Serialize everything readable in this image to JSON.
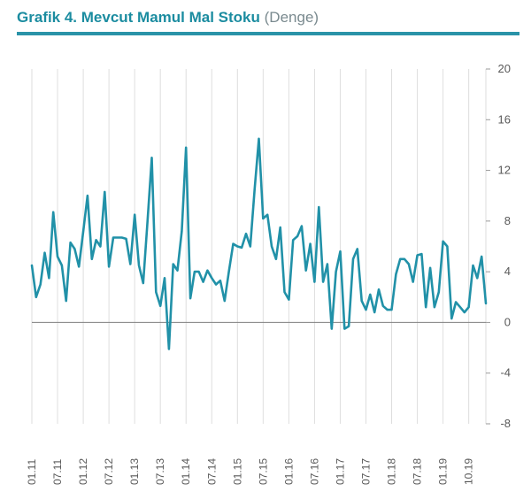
{
  "header": {
    "title_bold": "Grafik 4. Mevcut Mamul Mal Stoku",
    "title_light": "(Denge)"
  },
  "colors": {
    "line": "#2191a8",
    "grid": "#dedede",
    "title": "#1b8ca0",
    "rule": "#2a93a8"
  },
  "chart_data": {
    "type": "line",
    "title": "Grafik 4. Mevcut Mamul Mal Stoku (Denge)",
    "xlabel": "",
    "ylabel": "",
    "ylim": [
      -8,
      20
    ],
    "yticks": [
      -8,
      -4,
      0,
      4,
      8,
      12,
      16,
      20
    ],
    "y_axis_position": "right",
    "grid": "vertical",
    "legend": "none",
    "x_tick_labels": [
      "01.11",
      "07.11",
      "01.12",
      "07.12",
      "01.13",
      "07.13",
      "01.14",
      "07.14",
      "01.15",
      "07.15",
      "01.16",
      "07.16",
      "01.17",
      "07.17",
      "01.18",
      "07.18",
      "01.19",
      "10.19"
    ],
    "series": [
      {
        "values": [
          4.5,
          2.0,
          3.0,
          5.5,
          3.5,
          8.7,
          5.2,
          4.5,
          1.7,
          6.3,
          5.8,
          4.4,
          7.2,
          10.0,
          5.0,
          6.5,
          6.0,
          10.3,
          4.4,
          6.7,
          6.7,
          6.7,
          6.6,
          4.6,
          8.5,
          4.5,
          3.1,
          8.0,
          13.0,
          2.4,
          1.3,
          3.5,
          -2.1,
          4.6,
          4.1,
          7.2,
          13.8,
          1.9,
          4.0,
          4.0,
          3.2,
          4.1,
          3.5,
          3.0,
          3.3,
          1.7,
          4.0,
          6.2,
          6.0,
          5.9,
          7.0,
          6.0,
          10.5,
          14.5,
          8.2,
          8.5,
          6.0,
          5.0,
          7.5,
          2.4,
          1.8,
          6.5,
          6.8,
          7.6,
          4.1,
          6.2,
          3.2,
          9.1,
          3.2,
          4.6,
          -0.5,
          4.0,
          5.6,
          -0.5,
          -0.3,
          5.0,
          5.8,
          1.7,
          1.0,
          2.2,
          0.8,
          2.6,
          1.3,
          1.0,
          1.0,
          3.8,
          5.0,
          5.0,
          4.6,
          3.2,
          5.3,
          5.4,
          1.2,
          4.3,
          1.2,
          2.4,
          6.4,
          6.0,
          0.3,
          1.6,
          1.2,
          0.8,
          1.2,
          4.5,
          3.5,
          5.2,
          1.5
        ]
      }
    ]
  }
}
